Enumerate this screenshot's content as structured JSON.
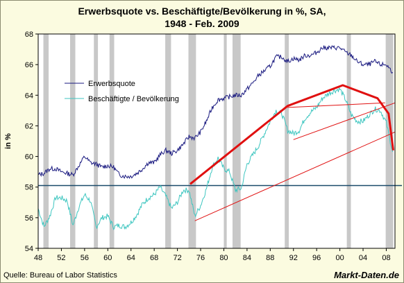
{
  "title_line1": "Erwerbsquote vs. Beschäftigte/Bevölkerung in %, SA,",
  "title_line2": "1948 - Feb. 2009",
  "source": "Quelle: Bureau of Labor Statistics",
  "brand": "Markt-Daten.de",
  "colors": {
    "background": "#fbfbe0",
    "plot_bg": "#ffffff",
    "recession": "#c8c8c8",
    "series1": "#1a1a80",
    "series2": "#3ec6c0",
    "trend": "#e01010",
    "hline": "#1a4a6a"
  },
  "chart_data": {
    "type": "line",
    "ylabel": "in %",
    "xlim": [
      1948,
      2009.5
    ],
    "ylim": [
      54,
      68
    ],
    "yticks": [
      "54",
      "56",
      "58",
      "60",
      "62",
      "64",
      "66",
      "68"
    ],
    "xticks": [
      "48",
      "52",
      "56",
      "60",
      "64",
      "68",
      "72",
      "76",
      "80",
      "84",
      "88",
      "92",
      "96",
      "00",
      "04",
      "08"
    ],
    "grid": false,
    "legend_position": "top-left",
    "recessions": [
      [
        1948.9,
        1949.8
      ],
      [
        1953.5,
        1954.4
      ],
      [
        1957.6,
        1958.3
      ],
      [
        1960.3,
        1961.1
      ],
      [
        1969.9,
        1970.9
      ],
      [
        1973.9,
        1975.2
      ],
      [
        1980.0,
        1980.5
      ],
      [
        1981.5,
        1982.9
      ],
      [
        1990.5,
        1991.2
      ],
      [
        2001.2,
        2001.9
      ],
      [
        2007.9,
        2009.2
      ]
    ],
    "horizontal_line": 58.1,
    "series": [
      {
        "name": "Erwerbsquote",
        "x": [
          1948,
          1949,
          1950,
          1951,
          1952,
          1953,
          1954,
          1955,
          1956,
          1957,
          1958,
          1959,
          1960,
          1961,
          1962,
          1963,
          1964,
          1965,
          1966,
          1967,
          1968,
          1969,
          1970,
          1971,
          1972,
          1973,
          1974,
          1975,
          1976,
          1977,
          1978,
          1979,
          1980,
          1981,
          1982,
          1983,
          1984,
          1985,
          1986,
          1987,
          1988,
          1989,
          1990,
          1991,
          1992,
          1993,
          1994,
          1995,
          1996,
          1997,
          1998,
          1999,
          2000,
          2001,
          2002,
          2003,
          2004,
          2005,
          2006,
          2007,
          2008,
          2009.1
        ],
        "values": [
          58.8,
          58.9,
          59.2,
          59.2,
          59.0,
          58.9,
          58.8,
          59.4,
          60.0,
          59.6,
          59.5,
          59.3,
          59.4,
          59.3,
          58.8,
          58.7,
          58.7,
          58.9,
          59.2,
          59.6,
          59.6,
          60.1,
          60.4,
          60.2,
          60.4,
          60.8,
          61.3,
          61.2,
          61.6,
          62.3,
          63.2,
          63.7,
          63.8,
          63.9,
          64.0,
          64.0,
          64.4,
          64.8,
          65.3,
          65.6,
          65.9,
          66.5,
          66.5,
          66.2,
          66.4,
          66.3,
          66.6,
          66.6,
          66.8,
          67.1,
          67.1,
          67.1,
          67.1,
          66.8,
          66.6,
          66.2,
          66.0,
          66.0,
          66.2,
          66.0,
          66.0,
          65.5
        ]
      },
      {
        "name": "Beschäftigte / Bevölkerung",
        "x": [
          1948,
          1949,
          1950,
          1951,
          1952,
          1953,
          1954,
          1955,
          1956,
          1957,
          1958,
          1959,
          1960,
          1961,
          1962,
          1963,
          1964,
          1965,
          1966,
          1967,
          1968,
          1969,
          1970,
          1971,
          1972,
          1973,
          1974,
          1975,
          1976,
          1977,
          1978,
          1979,
          1980,
          1981,
          1982,
          1983,
          1984,
          1985,
          1986,
          1987,
          1988,
          1989,
          1990,
          1991,
          1992,
          1993,
          1994,
          1995,
          1996,
          1997,
          1998,
          1999,
          2000,
          2001,
          2002,
          2003,
          2004,
          2005,
          2006,
          2007,
          2008,
          2009.1
        ],
        "values": [
          56.6,
          55.4,
          56.1,
          57.3,
          57.3,
          57.1,
          55.5,
          56.7,
          57.5,
          57.1,
          55.4,
          56.0,
          56.1,
          55.4,
          55.5,
          55.4,
          55.7,
          56.2,
          56.9,
          57.3,
          57.5,
          58.0,
          57.4,
          56.6,
          57.0,
          57.8,
          57.8,
          56.1,
          56.8,
          57.9,
          59.3,
          59.9,
          59.2,
          59.0,
          57.8,
          57.9,
          59.5,
          60.1,
          60.7,
          61.5,
          62.3,
          63.0,
          62.8,
          61.7,
          61.5,
          61.7,
          62.5,
          62.9,
          63.2,
          63.8,
          64.1,
          64.3,
          64.4,
          63.7,
          62.7,
          62.3,
          62.3,
          62.7,
          63.1,
          63.0,
          62.2,
          60.3
        ]
      }
    ]
  },
  "trendlines": [
    {
      "points": [
        [
          1974.2,
          58.2
        ],
        [
          1991.0,
          63.3
        ],
        [
          2000.5,
          64.65
        ],
        [
          2006.5,
          63.8
        ],
        [
          2008.4,
          62.8
        ],
        [
          2009.2,
          60.4
        ]
      ],
      "width": 3
    },
    {
      "points": [
        [
          1975.0,
          55.8
        ],
        [
          2009.5,
          61.6
        ]
      ],
      "width": 1
    },
    {
      "points": [
        [
          1992.0,
          61.1
        ],
        [
          2009.5,
          63.5
        ]
      ],
      "width": 1
    },
    {
      "points": [
        [
          1991.0,
          63.2
        ],
        [
          2007.8,
          63.5
        ]
      ],
      "width": 1
    }
  ]
}
